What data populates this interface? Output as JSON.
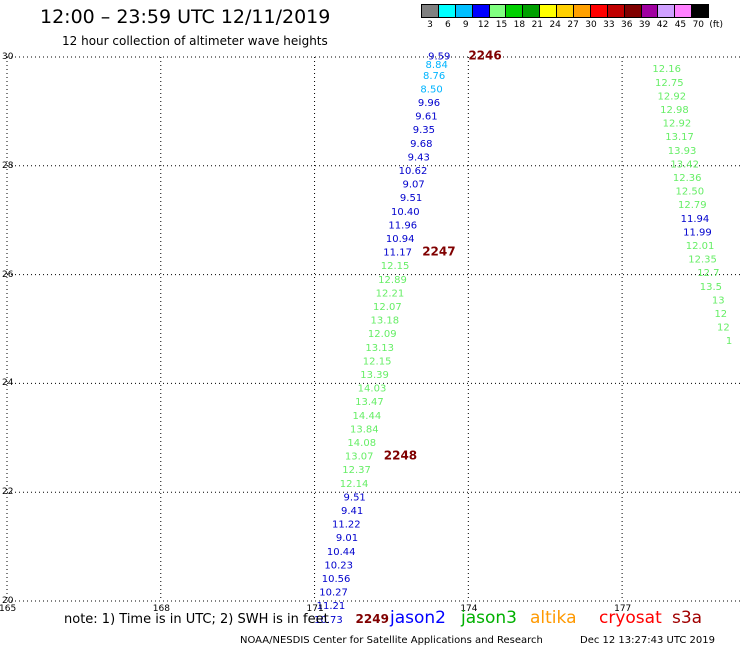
{
  "title": "12:00 – 23:59 UTC 12/11/2019",
  "subtitle": "12 hour collection of altimeter wave heights",
  "legend": {
    "colors": [
      "#808080",
      "#00ffff",
      "#00bfff",
      "#0000ff",
      "#80ff80",
      "#00d000",
      "#00a000",
      "#ffff00",
      "#ffd000",
      "#ffa000",
      "#ff0000",
      "#c00000",
      "#800000",
      "#a000a0",
      "#d0a0ff",
      "#ff80ff",
      "#000000"
    ],
    "labels": [
      "3",
      "6",
      "9",
      "12",
      "15",
      "18",
      "21",
      "24",
      "27",
      "30",
      "33",
      "36",
      "39",
      "42",
      "45",
      "70",
      "(ft)"
    ]
  },
  "axes": {
    "x_ticks": [
      "165",
      "168",
      "171",
      "174",
      "177"
    ],
    "y_ticks": [
      "30",
      "28",
      "26",
      "24",
      "22",
      "20"
    ]
  },
  "chart_data": {
    "type": "scatter",
    "xlim": [
      165,
      179.3
    ],
    "ylim": [
      20,
      30
    ],
    "grid": true,
    "points": [
      {
        "lon": 173.65,
        "lat": 29.95,
        "v": "9.59",
        "c": "#0000cd"
      },
      {
        "lon": 173.6,
        "lat": 29.8,
        "v": "8.84",
        "c": "#00b4ff"
      },
      {
        "lon": 173.55,
        "lat": 29.6,
        "v": "8.76",
        "c": "#00b4ff"
      },
      {
        "lon": 173.5,
        "lat": 29.35,
        "v": "8.50",
        "c": "#00b4ff"
      },
      {
        "lon": 173.45,
        "lat": 29.1,
        "v": "9.96",
        "c": "#0000cd"
      },
      {
        "lon": 173.4,
        "lat": 28.85,
        "v": "9.61",
        "c": "#0000cd"
      },
      {
        "lon": 173.35,
        "lat": 28.6,
        "v": "9.35",
        "c": "#0000cd"
      },
      {
        "lon": 173.3,
        "lat": 28.35,
        "v": "9.68",
        "c": "#0000cd"
      },
      {
        "lon": 173.25,
        "lat": 28.1,
        "v": "9.43",
        "c": "#0000cd"
      },
      {
        "lon": 173.2,
        "lat": 27.85,
        "v": "10.62",
        "c": "#0000cd"
      },
      {
        "lon": 173.15,
        "lat": 27.6,
        "v": "9.07",
        "c": "#0000cd"
      },
      {
        "lon": 173.1,
        "lat": 27.35,
        "v": "9.51",
        "c": "#0000cd"
      },
      {
        "lon": 173.05,
        "lat": 27.1,
        "v": "10.40",
        "c": "#0000cd"
      },
      {
        "lon": 173.0,
        "lat": 26.85,
        "v": "11.96",
        "c": "#0000cd"
      },
      {
        "lon": 172.95,
        "lat": 26.6,
        "v": "10.94",
        "c": "#0000cd"
      },
      {
        "lon": 172.9,
        "lat": 26.35,
        "v": "11.17",
        "c": "#0000cd"
      },
      {
        "lon": 172.85,
        "lat": 26.1,
        "v": "12.15",
        "c": "#66ee66"
      },
      {
        "lon": 172.8,
        "lat": 25.85,
        "v": "12.89",
        "c": "#66ee66"
      },
      {
        "lon": 172.75,
        "lat": 25.6,
        "v": "12.21",
        "c": "#66ee66"
      },
      {
        "lon": 172.7,
        "lat": 25.35,
        "v": "12.07",
        "c": "#66ee66"
      },
      {
        "lon": 172.65,
        "lat": 25.1,
        "v": "13.18",
        "c": "#66ee66"
      },
      {
        "lon": 172.6,
        "lat": 24.85,
        "v": "12.09",
        "c": "#66ee66"
      },
      {
        "lon": 172.55,
        "lat": 24.6,
        "v": "13.13",
        "c": "#66ee66"
      },
      {
        "lon": 172.5,
        "lat": 24.35,
        "v": "12.15",
        "c": "#66ee66"
      },
      {
        "lon": 172.45,
        "lat": 24.1,
        "v": "13.39",
        "c": "#66ee66"
      },
      {
        "lon": 172.4,
        "lat": 23.85,
        "v": "14.03",
        "c": "#66ee66"
      },
      {
        "lon": 172.35,
        "lat": 23.6,
        "v": "13.47",
        "c": "#66ee66"
      },
      {
        "lon": 172.3,
        "lat": 23.35,
        "v": "14.44",
        "c": "#66ee66"
      },
      {
        "lon": 172.25,
        "lat": 23.1,
        "v": "13.84",
        "c": "#66ee66"
      },
      {
        "lon": 172.2,
        "lat": 22.85,
        "v": "14.08",
        "c": "#66ee66"
      },
      {
        "lon": 172.15,
        "lat": 22.6,
        "v": "13.07",
        "c": "#66ee66"
      },
      {
        "lon": 172.1,
        "lat": 22.35,
        "v": "12.37",
        "c": "#66ee66"
      },
      {
        "lon": 172.05,
        "lat": 22.1,
        "v": "12.14",
        "c": "#66ee66"
      },
      {
        "lon": 172.0,
        "lat": 21.85,
        "v": "9.51",
        "c": "#0000cd"
      },
      {
        "lon": 171.95,
        "lat": 21.6,
        "v": "9.41",
        "c": "#0000cd"
      },
      {
        "lon": 171.9,
        "lat": 21.35,
        "v": "11.22",
        "c": "#0000cd"
      },
      {
        "lon": 171.85,
        "lat": 21.1,
        "v": "9.01",
        "c": "#0000cd"
      },
      {
        "lon": 171.8,
        "lat": 20.85,
        "v": "10.44",
        "c": "#0000cd"
      },
      {
        "lon": 171.75,
        "lat": 20.6,
        "v": "10.23",
        "c": "#0000cd"
      },
      {
        "lon": 171.7,
        "lat": 20.35,
        "v": "10.56",
        "c": "#0000cd"
      },
      {
        "lon": 171.65,
        "lat": 20.1,
        "v": "10.27",
        "c": "#0000cd"
      },
      {
        "lon": 171.6,
        "lat": 19.85,
        "v": "11.21",
        "c": "#0000cd"
      },
      {
        "lon": 171.55,
        "lat": 19.6,
        "v": "10.73",
        "c": "#0000cd"
      },
      {
        "lon": 178.15,
        "lat": 29.72,
        "v": "12.16",
        "c": "#66ee66"
      },
      {
        "lon": 178.2,
        "lat": 29.47,
        "v": "12.75",
        "c": "#66ee66"
      },
      {
        "lon": 178.25,
        "lat": 29.22,
        "v": "12.92",
        "c": "#66ee66"
      },
      {
        "lon": 178.3,
        "lat": 28.97,
        "v": "12.98",
        "c": "#66ee66"
      },
      {
        "lon": 178.35,
        "lat": 28.72,
        "v": "12.92",
        "c": "#66ee66"
      },
      {
        "lon": 178.4,
        "lat": 28.47,
        "v": "13.17",
        "c": "#66ee66"
      },
      {
        "lon": 178.45,
        "lat": 28.22,
        "v": "13.93",
        "c": "#66ee66"
      },
      {
        "lon": 178.5,
        "lat": 27.97,
        "v": "13.42",
        "c": "#66ee66"
      },
      {
        "lon": 178.55,
        "lat": 27.72,
        "v": "12.36",
        "c": "#66ee66"
      },
      {
        "lon": 178.6,
        "lat": 27.47,
        "v": "12.50",
        "c": "#66ee66"
      },
      {
        "lon": 178.65,
        "lat": 27.22,
        "v": "12.79",
        "c": "#66ee66"
      },
      {
        "lon": 178.7,
        "lat": 26.97,
        "v": "11.94",
        "c": "#0000cd"
      },
      {
        "lon": 178.75,
        "lat": 26.72,
        "v": "11.99",
        "c": "#0000cd"
      },
      {
        "lon": 178.8,
        "lat": 26.47,
        "v": "12.01",
        "c": "#66ee66"
      },
      {
        "lon": 178.85,
        "lat": 26.22,
        "v": "12.35",
        "c": "#66ee66"
      },
      {
        "lon": 178.9,
        "lat": 25.97,
        "v": "12.7",
        "c": "#66ee66"
      },
      {
        "lon": 178.95,
        "lat": 25.72,
        "v": "13.5",
        "c": "#66ee66"
      },
      {
        "lon": 179.0,
        "lat": 25.47,
        "v": "13",
        "c": "#66ee66"
      },
      {
        "lon": 179.05,
        "lat": 25.22,
        "v": "12",
        "c": "#66ee66"
      },
      {
        "lon": 179.1,
        "lat": 24.97,
        "v": "12",
        "c": "#66ee66"
      },
      {
        "lon": 179.15,
        "lat": 24.72,
        "v": "1",
        "c": "#66ee66"
      }
    ],
    "time_labels": [
      {
        "lon": 174.0,
        "lat": 29.95,
        "t": "2246"
      },
      {
        "lon": 173.1,
        "lat": 26.35,
        "t": "2247"
      },
      {
        "lon": 172.35,
        "lat": 22.6,
        "t": "2248"
      },
      {
        "lon": 171.8,
        "lat": 19.6,
        "t": "2249"
      }
    ]
  },
  "note": "note: 1) Time is in UTC; 2) SWH is in feet",
  "satellites": [
    {
      "name": "jason2",
      "color": "#0000ff"
    },
    {
      "name": "jason3",
      "color": "#00b000"
    },
    {
      "name": "altika",
      "color": "#ff9900"
    },
    {
      "name": "cryosat",
      "color": "#ff0000"
    },
    {
      "name": "s3a",
      "color": "#a00000"
    }
  ],
  "footer": "NOAA/NESDIS Center for Satellite Applications and Research",
  "timestamp": "Dec 12 13:27:43 UTC 2019"
}
